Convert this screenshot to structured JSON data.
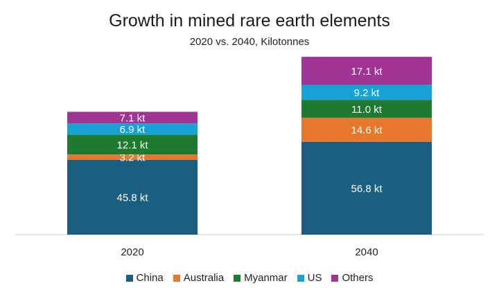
{
  "chart_data": {
    "type": "bar",
    "stacked": true,
    "title": "Growth in mined rare earth elements",
    "subtitle": "2020 vs. 2040, Kilotonnes",
    "categories": [
      "2020",
      "2040"
    ],
    "series": [
      {
        "name": "China",
        "values": [
          45.8,
          56.8
        ],
        "labels": [
          "45.8 kt",
          "56.8 kt"
        ],
        "color": "#1b5e80"
      },
      {
        "name": "Australia",
        "values": [
          3.2,
          14.6
        ],
        "labels": [
          "3.2 kt",
          "14.6 kt"
        ],
        "color": "#e8772e"
      },
      {
        "name": "Myanmar",
        "values": [
          12.1,
          11.0
        ],
        "labels": [
          "12.1 kt",
          "11.0 kt"
        ],
        "color": "#1e7a2e"
      },
      {
        "name": "US",
        "values": [
          6.9,
          9.2
        ],
        "labels": [
          "6.9 kt",
          "9.2 kt"
        ],
        "color": "#17a2d6"
      },
      {
        "name": "Others",
        "values": [
          7.1,
          17.1
        ],
        "labels": [
          "7.1 kt",
          "17.1 kt"
        ],
        "color": "#a03494"
      }
    ],
    "ylim": [
      0,
      109.6
    ],
    "grid": false,
    "legend": "bottom"
  }
}
